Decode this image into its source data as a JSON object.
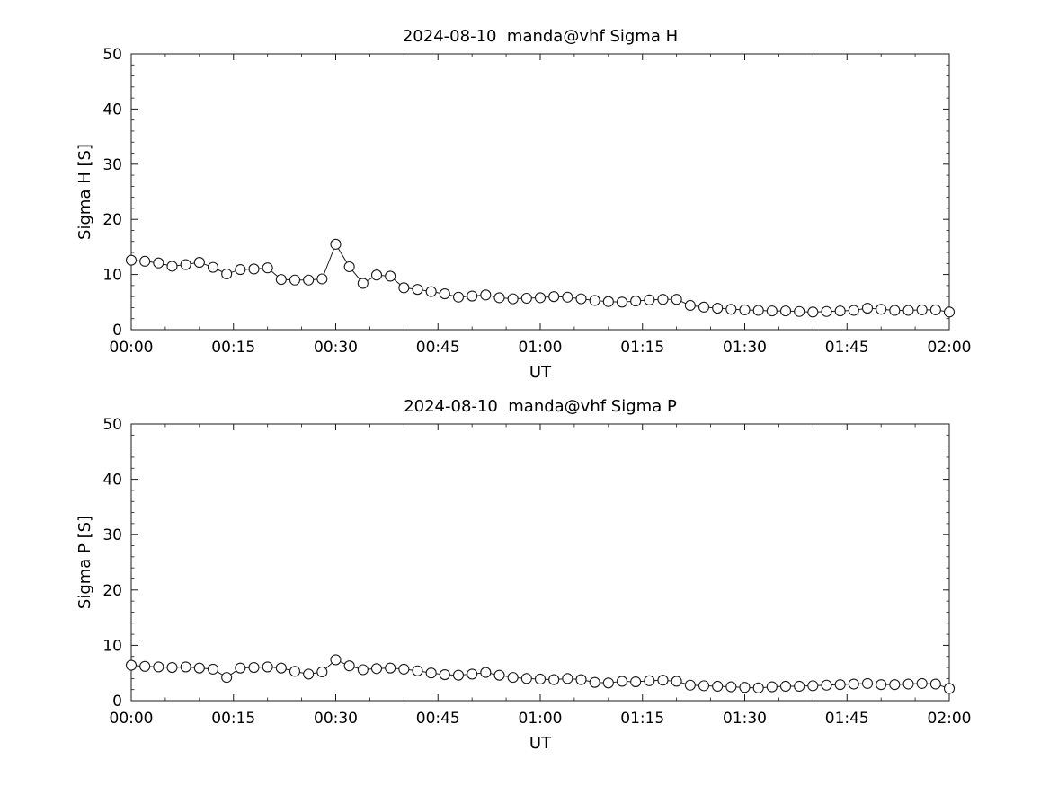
{
  "figure": {
    "background": "#ffffff",
    "axis_color": "#1a1a1a",
    "marker_fill": "#ffffff"
  },
  "chart_data": [
    {
      "type": "line",
      "title": "2024-08-10  manda@vhf Sigma H",
      "xlabel": "UT",
      "ylabel": "Sigma H [S]",
      "ylim": [
        0,
        50
      ],
      "y_ticks": [
        0,
        10,
        20,
        30,
        40,
        50
      ],
      "y_minor_step": 2,
      "xlim_minutes": [
        0,
        120
      ],
      "x_major_ticks_minutes": [
        0,
        15,
        30,
        45,
        60,
        75,
        90,
        105,
        120
      ],
      "x_tick_labels": [
        "00:00",
        "00:15",
        "00:30",
        "00:45",
        "01:00",
        "01:15",
        "01:30",
        "01:45",
        "02:00"
      ],
      "x_minor_step_minutes": 5,
      "legend": "none",
      "grid": "off",
      "marker": "circle-open",
      "line_color": "#1a1a1a",
      "x_minutes": [
        0,
        2,
        4,
        6,
        8,
        10,
        12,
        14,
        16,
        18,
        20,
        22,
        24,
        26,
        28,
        30,
        32,
        34,
        36,
        38,
        40,
        42,
        44,
        46,
        48,
        50,
        52,
        54,
        56,
        58,
        60,
        62,
        64,
        66,
        68,
        70,
        72,
        74,
        76,
        78,
        80,
        82,
        84,
        86,
        88,
        90,
        92,
        94,
        96,
        98,
        100,
        102,
        104,
        106,
        108,
        110,
        112,
        114,
        116,
        118,
        120
      ],
      "values": [
        12.6,
        12.4,
        12.1,
        11.5,
        11.8,
        12.2,
        11.3,
        10.1,
        10.9,
        11.0,
        11.2,
        9.1,
        9.0,
        9.0,
        9.2,
        15.5,
        11.4,
        8.4,
        9.9,
        9.7,
        7.6,
        7.3,
        6.9,
        6.5,
        5.9,
        6.1,
        6.3,
        5.8,
        5.6,
        5.7,
        5.8,
        6.0,
        5.9,
        5.6,
        5.3,
        5.1,
        5.0,
        5.2,
        5.4,
        5.5,
        5.5,
        4.4,
        4.1,
        3.9,
        3.7,
        3.6,
        3.5,
        3.4,
        3.4,
        3.3,
        3.2,
        3.3,
        3.4,
        3.5,
        3.9,
        3.7,
        3.5,
        3.5,
        3.6,
        3.6,
        3.2
      ]
    },
    {
      "type": "line",
      "title": "2024-08-10  manda@vhf Sigma P",
      "xlabel": "UT",
      "ylabel": "Sigma P [S]",
      "ylim": [
        0,
        50
      ],
      "y_ticks": [
        0,
        10,
        20,
        30,
        40,
        50
      ],
      "y_minor_step": 2,
      "xlim_minutes": [
        0,
        120
      ],
      "x_major_ticks_minutes": [
        0,
        15,
        30,
        45,
        60,
        75,
        90,
        105,
        120
      ],
      "x_tick_labels": [
        "00:00",
        "00:15",
        "00:30",
        "00:45",
        "01:00",
        "01:15",
        "01:30",
        "01:45",
        "02:00"
      ],
      "x_minor_step_minutes": 5,
      "legend": "none",
      "grid": "off",
      "marker": "circle-open",
      "line_color": "#1a1a1a",
      "x_minutes": [
        0,
        2,
        4,
        6,
        8,
        10,
        12,
        14,
        16,
        18,
        20,
        22,
        24,
        26,
        28,
        30,
        32,
        34,
        36,
        38,
        40,
        42,
        44,
        46,
        48,
        50,
        52,
        54,
        56,
        58,
        60,
        62,
        64,
        66,
        68,
        70,
        72,
        74,
        76,
        78,
        80,
        82,
        84,
        86,
        88,
        90,
        92,
        94,
        96,
        98,
        100,
        102,
        104,
        106,
        108,
        110,
        112,
        114,
        116,
        118,
        120
      ],
      "values": [
        6.4,
        6.2,
        6.1,
        6.0,
        6.1,
        5.9,
        5.7,
        4.2,
        5.9,
        6.0,
        6.1,
        5.9,
        5.3,
        4.8,
        5.2,
        7.4,
        6.3,
        5.6,
        5.8,
        5.9,
        5.7,
        5.4,
        5.0,
        4.7,
        4.6,
        4.8,
        5.1,
        4.6,
        4.2,
        4.0,
        3.9,
        3.8,
        4.0,
        3.8,
        3.3,
        3.2,
        3.5,
        3.4,
        3.6,
        3.7,
        3.5,
        2.8,
        2.7,
        2.6,
        2.5,
        2.4,
        2.3,
        2.5,
        2.6,
        2.6,
        2.7,
        2.8,
        2.9,
        3.0,
        3.1,
        2.9,
        2.9,
        3.0,
        3.1,
        3.0,
        2.2
      ]
    }
  ]
}
